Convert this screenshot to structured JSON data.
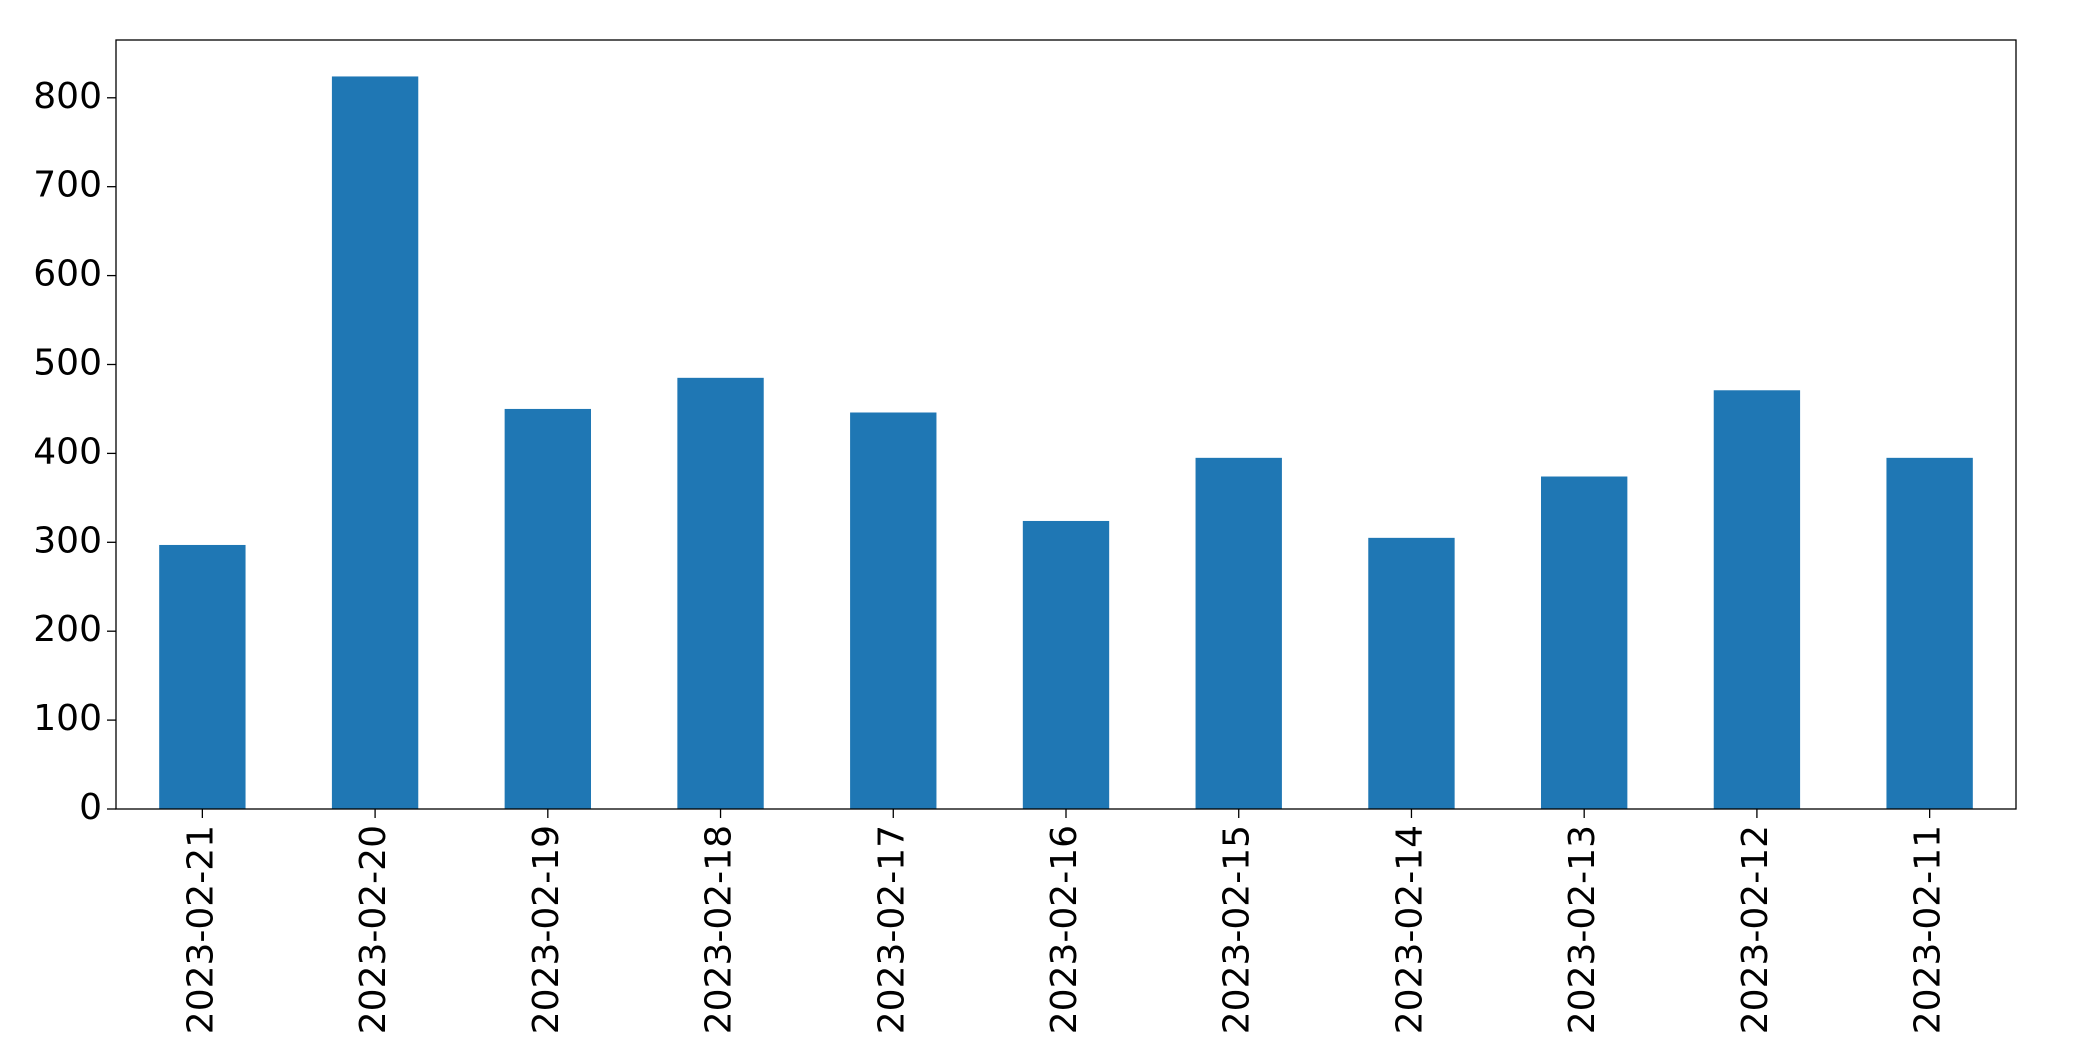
{
  "chart_data": {
    "type": "bar",
    "categories": [
      "2023-02-21",
      "2023-02-20",
      "2023-02-19",
      "2023-02-18",
      "2023-02-17",
      "2023-02-16",
      "2023-02-15",
      "2023-02-14",
      "2023-02-13",
      "2023-02-12",
      "2023-02-11"
    ],
    "values": [
      297,
      824,
      450,
      485,
      446,
      324,
      395,
      305,
      374,
      471,
      395
    ],
    "color": "#1f77b4",
    "ylim": [
      0,
      865
    ],
    "yticks": [
      0,
      100,
      200,
      300,
      400,
      500,
      600,
      700,
      800
    ],
    "grid": false
  }
}
